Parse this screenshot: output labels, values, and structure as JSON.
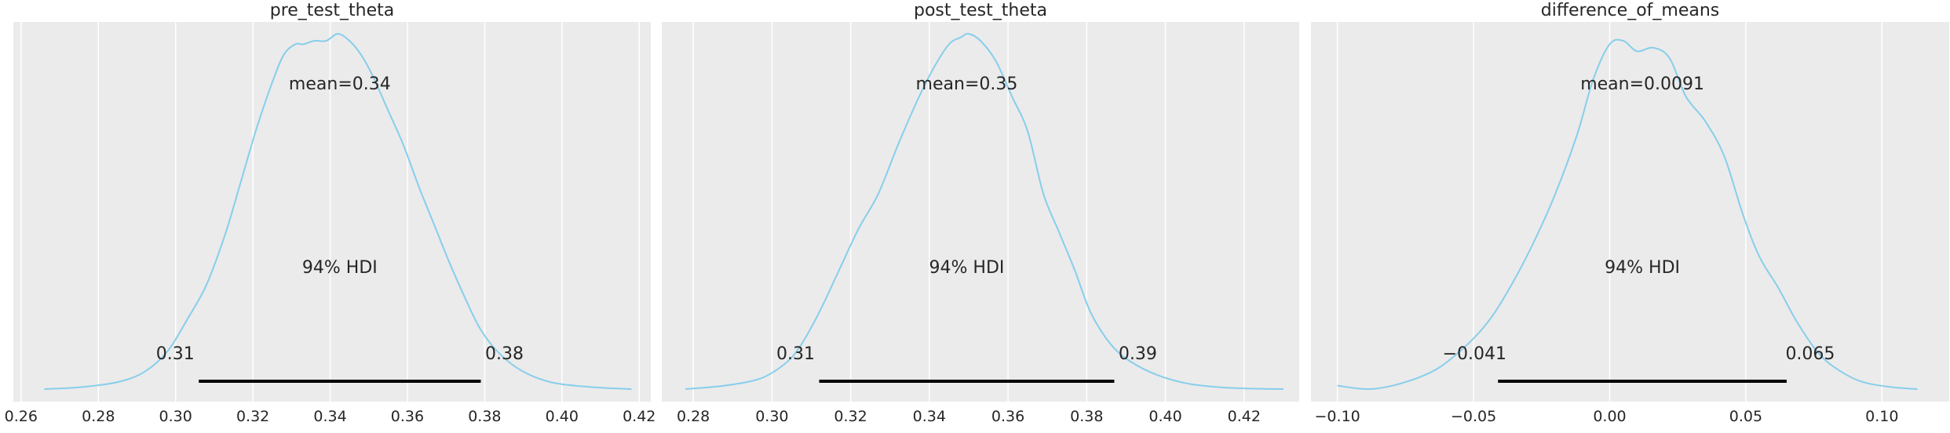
{
  "theme": {
    "panel_bg": "#ebebeb",
    "grid": "#ffffff",
    "curve": "#87ceeb",
    "hdi": "#000000",
    "text": "#262626"
  },
  "chart_data": [
    {
      "type": "line",
      "title": "pre_test_theta",
      "xlim": [
        0.258,
        0.423
      ],
      "ylim": [
        0,
        1.06
      ],
      "xticks": [
        0.26,
        0.28,
        0.3,
        0.32,
        0.34,
        0.36,
        0.38,
        0.4,
        0.42
      ],
      "xtick_labels": [
        "0.26",
        "0.28",
        "0.30",
        "0.32",
        "0.34",
        "0.36",
        "0.38",
        "0.40",
        "0.42"
      ],
      "density": {
        "x": [
          0.266,
          0.275,
          0.285,
          0.292,
          0.298,
          0.303,
          0.308,
          0.313,
          0.317,
          0.321,
          0.325,
          0.328,
          0.331,
          0.333,
          0.336,
          0.339,
          0.342,
          0.345,
          0.348,
          0.351,
          0.355,
          0.359,
          0.363,
          0.367,
          0.371,
          0.375,
          0.379,
          0.384,
          0.39,
          0.397,
          0.405,
          0.412,
          0.418
        ],
        "y": [
          0.0,
          0.005,
          0.02,
          0.05,
          0.11,
          0.2,
          0.3,
          0.45,
          0.6,
          0.75,
          0.88,
          0.96,
          0.99,
          0.99,
          1.0,
          1.0,
          1.02,
          1.0,
          0.96,
          0.9,
          0.8,
          0.7,
          0.58,
          0.47,
          0.36,
          0.26,
          0.17,
          0.1,
          0.05,
          0.02,
          0.008,
          0.003,
          0.0
        ]
      },
      "mean_label": "mean=0.34",
      "hdi": {
        "low": 0.306,
        "high": 0.379,
        "label": "94% HDI",
        "low_label": "0.31",
        "high_label": "0.38"
      }
    },
    {
      "type": "line",
      "title": "post_test_theta",
      "xlim": [
        0.272,
        0.434
      ],
      "ylim": [
        0,
        1.06
      ],
      "xticks": [
        0.28,
        0.3,
        0.32,
        0.34,
        0.36,
        0.38,
        0.4,
        0.42
      ],
      "xtick_labels": [
        "0.28",
        "0.30",
        "0.32",
        "0.34",
        "0.36",
        "0.38",
        "0.40",
        "0.42"
      ],
      "density": {
        "x": [
          0.278,
          0.288,
          0.297,
          0.303,
          0.307,
          0.312,
          0.317,
          0.322,
          0.327,
          0.332,
          0.337,
          0.341,
          0.345,
          0.348,
          0.35,
          0.353,
          0.357,
          0.361,
          0.365,
          0.369,
          0.373,
          0.377,
          0.381,
          0.386,
          0.391,
          0.398,
          0.406,
          0.414,
          0.42,
          0.43
        ],
        "y": [
          0.0,
          0.01,
          0.03,
          0.07,
          0.12,
          0.22,
          0.34,
          0.46,
          0.56,
          0.7,
          0.83,
          0.92,
          0.99,
          1.01,
          1.02,
          1.0,
          0.94,
          0.84,
          0.74,
          0.56,
          0.45,
          0.34,
          0.22,
          0.13,
          0.08,
          0.04,
          0.015,
          0.005,
          0.002,
          0.0
        ]
      },
      "mean_label": "mean=0.35",
      "hdi": {
        "low": 0.312,
        "high": 0.387,
        "label": "94% HDI",
        "low_label": "0.31",
        "high_label": "0.39"
      }
    },
    {
      "type": "line",
      "title": "difference_of_means",
      "xlim": [
        -0.1097,
        0.1247
      ],
      "ylim": [
        0,
        1.06
      ],
      "xticks": [
        -0.1,
        -0.05,
        0.0,
        0.05,
        0.1
      ],
      "xtick_labels": [
        "−0.10",
        "−0.05",
        "0.00",
        "0.05",
        "0.10"
      ],
      "density": {
        "x": [
          -0.1,
          -0.088,
          -0.075,
          -0.063,
          -0.052,
          -0.044,
          -0.036,
          -0.028,
          -0.02,
          -0.012,
          -0.006,
          0.0,
          0.005,
          0.01,
          0.016,
          0.022,
          0.028,
          0.035,
          0.042,
          0.049,
          0.055,
          0.062,
          0.069,
          0.077,
          0.085,
          0.093,
          0.103,
          0.113
        ],
        "y": [
          0.01,
          0.0,
          0.02,
          0.06,
          0.13,
          0.2,
          0.3,
          0.42,
          0.56,
          0.73,
          0.89,
          0.99,
          1.0,
          0.97,
          0.98,
          0.95,
          0.84,
          0.77,
          0.67,
          0.5,
          0.38,
          0.29,
          0.19,
          0.1,
          0.05,
          0.02,
          0.006,
          0.0
        ]
      },
      "mean_label": "mean=0.0091",
      "hdi": {
        "low": -0.041,
        "high": 0.065,
        "label": "94% HDI",
        "low_label": "−0.041",
        "high_label": "0.065"
      }
    }
  ]
}
